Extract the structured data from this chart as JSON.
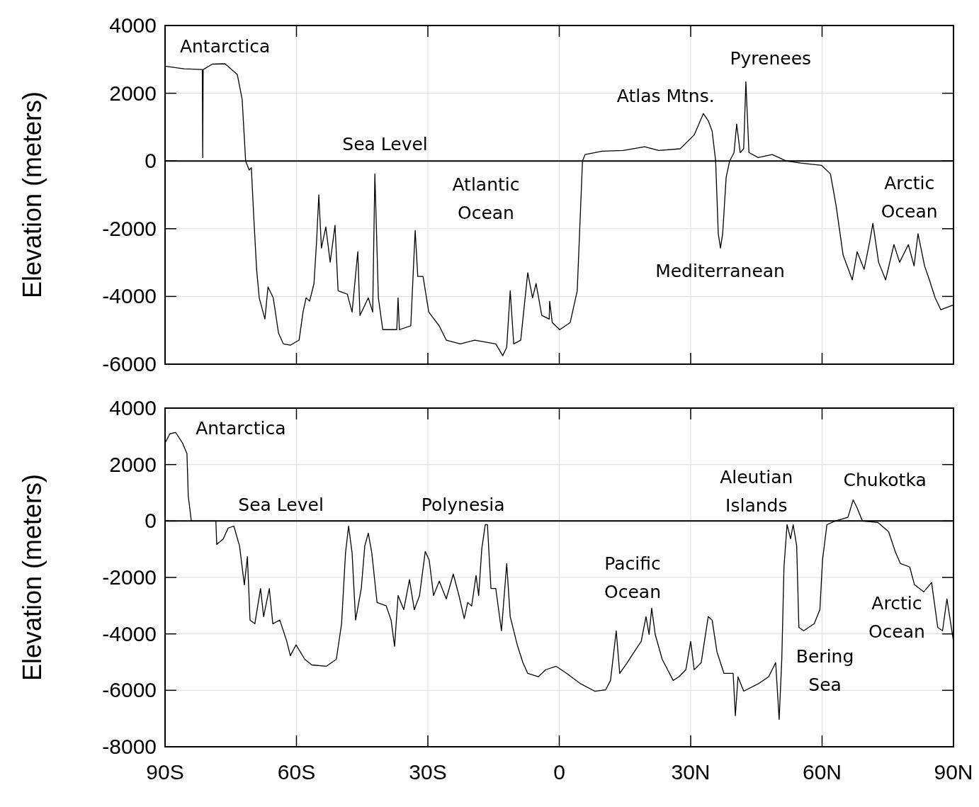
{
  "chart_data": [
    {
      "type": "line",
      "ylabel": "Elevation (meters)",
      "xlim": [
        -90,
        90
      ],
      "xticks": [
        {
          "value": -90,
          "label": null
        },
        {
          "value": -60,
          "label": null
        },
        {
          "value": -30,
          "label": null
        },
        {
          "value": 0,
          "label": null
        },
        {
          "value": 30,
          "label": null
        },
        {
          "value": 60,
          "label": null
        },
        {
          "value": 90,
          "label": null
        }
      ],
      "ylim": [
        -6000,
        4000
      ],
      "yticks": [
        -6000,
        -4000,
        -2000,
        0,
        2000,
        4000
      ],
      "grid": true,
      "tick_labels": "y",
      "ref_lines": [
        {
          "axis": "y",
          "value": 0
        }
      ],
      "annotations": [
        "Antarctica",
        "Sea Level",
        "Atlantic\nOcean",
        "Atlas Mtns.",
        "Pyrenees",
        "Mediterranean",
        "Arctic\nOcean"
      ],
      "series": [
        {
          "color": "#000000",
          "x": [
            -90,
            -85.6,
            -81.5,
            -81.4,
            -81.3,
            -79.2,
            -76.3,
            -73.5,
            -72.4,
            -71.6,
            -70.8,
            -70.3,
            -69.8,
            -69.1,
            -68.5,
            -67.2,
            -66.5,
            -65.3,
            -64.1,
            -63.0,
            -61.4,
            -59.4,
            -58.5,
            -57.8,
            -57.0,
            -56.0,
            -55.4,
            -54.9,
            -54.3,
            -53.3,
            -52.3,
            -51.2,
            -50.5,
            -48.4,
            -47.3,
            -46.0,
            -45.5,
            -43.6,
            -42.6,
            -42.1,
            -41.3,
            -40.3,
            -37.1,
            -36.8,
            -36.5,
            -33.9,
            -32.9,
            -32.3,
            -31.1,
            -29.8,
            -27.4,
            -25.8,
            -22.6,
            -19.3,
            -14.5,
            -12.9,
            -12.0,
            -11.2,
            -10.4,
            -8.8,
            -7.2,
            -6.1,
            -5.3,
            -4.0,
            -2.3,
            -2.2,
            -1.6,
            0.1,
            2.5,
            4.1,
            5.3,
            5.9,
            9.8,
            14.6,
            19.5,
            22.7,
            27.6,
            30.8,
            32.9,
            34.0,
            34.9,
            35.7,
            36.3,
            36.8,
            37.3,
            38.1,
            38.9,
            39.9,
            40.5,
            41.3,
            42.1,
            42.6,
            43.3,
            45.4,
            48.6,
            51.8,
            55.1,
            59.9,
            61.9,
            63.2,
            64.8,
            66.9,
            68.0,
            69.6,
            70.9,
            71.6,
            72.9,
            74.5,
            76.4,
            77.7,
            79.7,
            81.0,
            81.9,
            83.4,
            84.5,
            85.8,
            87.1,
            90
          ],
          "values": [
            2800,
            2720,
            2700,
            100,
            2700,
            2860,
            2870,
            2550,
            1820,
            0,
            -270,
            -200,
            -1530,
            -3200,
            -4040,
            -4670,
            -3720,
            -4040,
            -5080,
            -5400,
            -5440,
            -5290,
            -4460,
            -4040,
            -4140,
            -3620,
            -2360,
            -1000,
            -2570,
            -1950,
            -2990,
            -1900,
            -3830,
            -3930,
            -4460,
            -2680,
            -4560,
            -4040,
            -4460,
            -380,
            -4040,
            -4980,
            -4980,
            -4040,
            -4980,
            -4870,
            -2050,
            -3410,
            -3410,
            -4460,
            -4870,
            -5290,
            -5400,
            -5290,
            -5400,
            -5750,
            -5500,
            -3830,
            -5400,
            -5290,
            -3300,
            -4040,
            -3620,
            -4560,
            -4670,
            -4140,
            -4770,
            -4980,
            -4770,
            -3830,
            0,
            190,
            290,
            310,
            420,
            310,
            360,
            770,
            1400,
            1190,
            880,
            0,
            -2150,
            -2570,
            -2150,
            -480,
            0,
            250,
            1090,
            250,
            360,
            2340,
            250,
            100,
            190,
            0,
            -60,
            -130,
            -380,
            -1320,
            -2780,
            -3510,
            -2680,
            -3200,
            -2360,
            -1840,
            -2990,
            -3510,
            -2470,
            -2990,
            -2470,
            -3100,
            -2150,
            -3100,
            -3510,
            -4040,
            -4390,
            -4250
          ]
        }
      ]
    },
    {
      "type": "line",
      "ylabel": "Elevation (meters)",
      "xlim": [
        -90,
        90
      ],
      "xticks": [
        {
          "value": -90,
          "label": "90S"
        },
        {
          "value": -60,
          "label": "60S"
        },
        {
          "value": -30,
          "label": "30S"
        },
        {
          "value": 0,
          "label": "0"
        },
        {
          "value": 30,
          "label": "30N"
        },
        {
          "value": 60,
          "label": "60N"
        },
        {
          "value": 90,
          "label": "90N"
        }
      ],
      "ylim": [
        -8000,
        4000
      ],
      "yticks": [
        -8000,
        -6000,
        -4000,
        -2000,
        0,
        2000,
        4000
      ],
      "grid": true,
      "ref_lines": [
        {
          "axis": "y",
          "value": 0
        }
      ],
      "annotations": [
        "Antarctica",
        "Sea Level",
        "Polynesia",
        "Pacific\nOcean",
        "Aleutian\nIslands",
        "Chukotka",
        "Bering\nSea",
        "Arctic\nOcean"
      ],
      "series": [
        {
          "color": "#000000",
          "x": [
            -90,
            -88.9,
            -87.6,
            -86.0,
            -85.0,
            -84.7,
            -84.0,
            -78.4,
            -78.2,
            -76.7,
            -75.6,
            -74.3,
            -73.0,
            -71.9,
            -71.2,
            -70.6,
            -69.5,
            -68.2,
            -67.5,
            -66.2,
            -65.4,
            -63.8,
            -62.2,
            -61.4,
            -60.1,
            -58.1,
            -56.5,
            -53.2,
            -50.9,
            -49.7,
            -48.8,
            -48.1,
            -47.3,
            -46.5,
            -45.2,
            -44.4,
            -43.6,
            -42.8,
            -41.6,
            -39.5,
            -38.4,
            -37.6,
            -36.8,
            -35.5,
            -34.2,
            -33.1,
            -31.9,
            -30.6,
            -29.7,
            -28.7,
            -27.4,
            -25.8,
            -24.2,
            -22.9,
            -21.7,
            -20.9,
            -20.0,
            -19.0,
            -18.4,
            -17.7,
            -16.9,
            -16.4,
            -15.6,
            -14.5,
            -13.2,
            -12.0,
            -11.2,
            -9.6,
            -8.3,
            -7.2,
            -4.8,
            -3.1,
            -0.7,
            1.7,
            4.9,
            8.1,
            10.6,
            11.7,
            13.0,
            13.8,
            15.5,
            17.1,
            18.7,
            19.8,
            20.5,
            21.1,
            21.9,
            23.5,
            26.0,
            27.3,
            28.9,
            30.0,
            30.8,
            32.4,
            34.0,
            34.9,
            36.0,
            37.6,
            39.7,
            40.2,
            40.8,
            42.1,
            45.4,
            47.8,
            49.4,
            50.2,
            50.8,
            51.3,
            52.0,
            52.8,
            53.4,
            54.2,
            54.7,
            55.8,
            58.2,
            59.5,
            60.1,
            61.1,
            63.0,
            65.9,
            67.1,
            67.9,
            69.2,
            72.7,
            75.2,
            76.8,
            77.9,
            80.0,
            81.1,
            83.2,
            85.0,
            86.4,
            87.5,
            88.5,
            90
          ],
          "values": [
            2760,
            3090,
            3140,
            2760,
            2390,
            880,
            0,
            0,
            -830,
            -630,
            -250,
            -180,
            -880,
            -2260,
            -1260,
            -3510,
            -3640,
            -2390,
            -3390,
            -2390,
            -3640,
            -3510,
            -4270,
            -4770,
            -4390,
            -4900,
            -5100,
            -5150,
            -4900,
            -3640,
            -1130,
            -180,
            -1130,
            -3510,
            -2390,
            -880,
            -430,
            -1130,
            -2890,
            -3010,
            -3510,
            -4440,
            -2640,
            -3140,
            -2080,
            -3140,
            -2640,
            -1080,
            -1380,
            -2640,
            -2130,
            -2760,
            -1880,
            -2640,
            -3460,
            -2890,
            -3010,
            -1930,
            -2640,
            -1000,
            -130,
            -130,
            -2390,
            -2390,
            -3890,
            -1510,
            -3390,
            -4390,
            -5020,
            -5400,
            -5520,
            -5270,
            -5150,
            -5400,
            -5770,
            -6030,
            -5980,
            -5650,
            -3890,
            -5400,
            -5020,
            -4640,
            -4270,
            -3390,
            -4020,
            -3090,
            -4020,
            -4900,
            -5650,
            -5520,
            -5270,
            -4270,
            -5270,
            -5020,
            -3390,
            -3510,
            -4640,
            -5400,
            -5400,
            -6900,
            -5520,
            -6030,
            -5770,
            -5520,
            -5020,
            -7030,
            -4900,
            -1630,
            -130,
            -630,
            -130,
            -880,
            -3770,
            -3890,
            -3640,
            -3140,
            -1380,
            -130,
            0,
            130,
            750,
            500,
            0,
            -50,
            -380,
            -1130,
            -1510,
            -1630,
            -2260,
            -2510,
            -2180,
            -3770,
            -3890,
            -2760,
            -4270
          ]
        }
      ]
    }
  ]
}
